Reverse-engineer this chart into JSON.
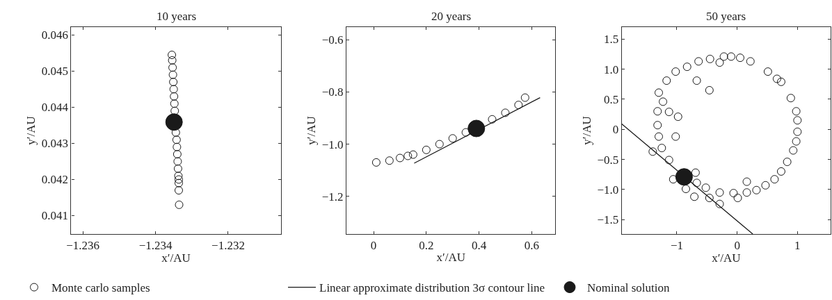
{
  "chart_data": [
    {
      "type": "scatter",
      "title": "10 years",
      "xlabel": "x′/AU",
      "ylabel": "y′/AU",
      "xlim": [
        -1.23632,
        -1.23055
      ],
      "xticks": [
        {
          "value": -1.236,
          "label": "−1.236"
        },
        {
          "value": -1.234,
          "label": "−1.234"
        },
        {
          "value": -1.232,
          "label": "−1.232"
        }
      ],
      "ylim": [
        0.04049,
        0.04622
      ],
      "yticks": [
        0.041,
        0.042,
        0.043,
        0.044,
        0.045,
        0.046
      ],
      "legend": "bottom",
      "series": [
        {
          "name": "Monte carlo samples",
          "type": "scatter",
          "marker": "circle",
          "color": "#1a1a1a",
          "x": [
            -1.23355,
            -1.23354,
            -1.23353,
            -1.23352,
            -1.23351,
            -1.2335,
            -1.23349,
            -1.23348,
            -1.23347,
            -1.23344,
            -1.23342,
            -1.23341,
            -1.2334,
            -1.23339,
            -1.23338,
            -1.23337,
            -1.23336,
            -1.23336,
            -1.23336,
            -1.23335
          ],
          "values": [
            0.04545,
            0.0453,
            0.0451,
            0.0449,
            0.0447,
            0.0445,
            0.0443,
            0.0441,
            0.0439,
            0.0433,
            0.0431,
            0.0429,
            0.0427,
            0.0425,
            0.0423,
            0.0421,
            0.042,
            0.0419,
            0.0417,
            0.0413
          ]
        },
        {
          "name": "Nominal solution",
          "type": "scatter",
          "marker": "circle",
          "color": "#1a1a1a",
          "x": [
            -1.23349
          ],
          "values": [
            0.04359
          ]
        }
      ]
    },
    {
      "type": "scatter",
      "title": "20 years",
      "xlabel": "x′/AU",
      "ylabel": "y′/AU",
      "xlim": [
        -0.103,
        0.69
      ],
      "xticks": [
        0,
        0.2,
        0.4,
        0.6
      ],
      "ylim": [
        -1.344,
        -0.552
      ],
      "yticks": [
        {
          "value": -1.2,
          "label": "−1.2"
        },
        {
          "value": -1.0,
          "label": "−1.0"
        },
        {
          "value": -0.8,
          "label": "−0.8"
        },
        {
          "value": -0.6,
          "label": "−0.6"
        }
      ],
      "legend": "bottom",
      "series": [
        {
          "name": "Monte carlo samples",
          "type": "scatter",
          "marker": "circle",
          "color": "#1a1a1a",
          "x": [
            0.01,
            0.06,
            0.1,
            0.13,
            0.15,
            0.2,
            0.25,
            0.3,
            0.35,
            0.45,
            0.5,
            0.55,
            0.575
          ],
          "values": [
            -1.07,
            -1.063,
            -1.053,
            -1.045,
            -1.04,
            -1.022,
            -1.0,
            -0.978,
            -0.955,
            -0.905,
            -0.88,
            -0.85,
            -0.822
          ]
        },
        {
          "name": "Linear approximate distribution 3σ contour line",
          "type": "line",
          "line_style": "solid",
          "marker": "none",
          "color": "#1a1a1a",
          "x": [
            0.154,
            0.632
          ],
          "values": [
            -1.073,
            -0.822
          ]
        },
        {
          "name": "Nominal solution",
          "type": "scatter",
          "marker": "circle",
          "color": "#1a1a1a",
          "x": [
            0.39
          ],
          "values": [
            -0.94
          ]
        }
      ]
    },
    {
      "type": "scatter",
      "title": "50 years",
      "xlabel": "x′/AU",
      "ylabel": "y′/AU",
      "xlim": [
        -1.914,
        1.55
      ],
      "xticks": [
        {
          "value": -1,
          "label": "−1"
        },
        0,
        1
      ],
      "ylim": [
        -1.74,
        1.7
      ],
      "yticks": [
        {
          "value": -1.5,
          "label": "−1.5"
        },
        {
          "value": -1.0,
          "label": "−1.0"
        },
        {
          "value": -0.5,
          "label": "−0.5"
        },
        0,
        0.5,
        {
          "value": 1.0,
          "label": "1.0"
        },
        1.5
      ],
      "legend": "bottom",
      "series": [
        {
          "name": "Monte carlo samples",
          "type": "scatter",
          "marker": "circle",
          "color": "#1a1a1a",
          "x": [
            -1.3,
            -1.17,
            -1.02,
            -0.83,
            -0.64,
            -0.45,
            -0.29,
            -0.22,
            -0.1,
            0.05,
            0.22,
            0.51,
            0.66,
            0.73,
            0.89,
            0.98,
            1.0,
            1.0,
            0.98,
            0.93,
            0.83,
            0.73,
            0.62,
            0.47,
            0.32,
            0.16,
            -0.06,
            -0.29,
            -0.52,
            -0.67,
            -1.13,
            -1.25,
            -1.3,
            -1.32,
            -1.32,
            -1.23,
            -0.46,
            -0.67,
            -0.98,
            -1.13,
            -1.02,
            -1.4,
            -1.06,
            -0.85,
            -0.71,
            -0.46,
            -0.29,
            0.01,
            0.16,
            -0.69
          ],
          "values": [
            0.61,
            0.81,
            0.96,
            1.04,
            1.13,
            1.17,
            1.11,
            1.21,
            1.21,
            1.19,
            1.13,
            0.96,
            0.84,
            0.79,
            0.52,
            0.3,
            0.15,
            -0.04,
            -0.2,
            -0.35,
            -0.54,
            -0.7,
            -0.83,
            -0.93,
            -1.01,
            -1.05,
            -1.06,
            -1.05,
            -0.97,
            -0.89,
            -0.51,
            -0.31,
            -0.12,
            0.07,
            0.3,
            0.46,
            0.65,
            0.81,
            0.21,
            0.29,
            -0.12,
            -0.37,
            -0.83,
            -0.99,
            -1.12,
            -1.14,
            -1.24,
            -1.14,
            -0.87,
            -0.72
          ]
        },
        {
          "name": "Linear approximate distribution 3σ contour line",
          "type": "line",
          "line_style": "solid",
          "marker": "none",
          "color": "#1a1a1a",
          "x": [
            -1.914,
            0.259
          ],
          "values": [
            0.09,
            -1.74
          ]
        },
        {
          "name": "Nominal solution",
          "type": "scatter",
          "marker": "circle",
          "color": "#1a1a1a",
          "x": [
            -0.88
          ],
          "values": [
            -0.79
          ]
        }
      ]
    }
  ]
}
